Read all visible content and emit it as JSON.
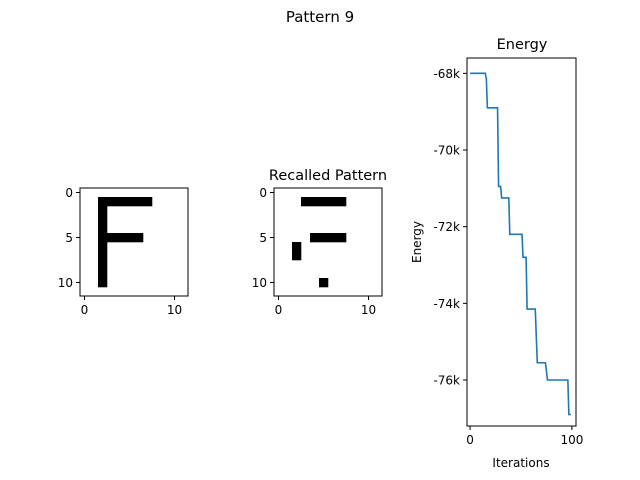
{
  "figure_title": "Pattern 9",
  "chart_data": [
    {
      "type": "heatmap",
      "title": "",
      "grid_size": [
        12,
        12
      ],
      "xlim": [
        -0.5,
        11.5
      ],
      "ylim": [
        11.5,
        -0.5
      ],
      "x_ticks": [
        "0",
        "10"
      ],
      "y_ticks": [
        "0",
        "5",
        "10"
      ],
      "colormap": "binary",
      "black_cells": [
        [
          1,
          2
        ],
        [
          1,
          3
        ],
        [
          1,
          4
        ],
        [
          1,
          5
        ],
        [
          1,
          6
        ],
        [
          1,
          7
        ],
        [
          2,
          2
        ],
        [
          3,
          2
        ],
        [
          4,
          2
        ],
        [
          5,
          2
        ],
        [
          5,
          3
        ],
        [
          5,
          4
        ],
        [
          5,
          5
        ],
        [
          5,
          6
        ],
        [
          6,
          2
        ],
        [
          7,
          2
        ],
        [
          8,
          2
        ],
        [
          9,
          2
        ],
        [
          10,
          2
        ]
      ]
    },
    {
      "type": "heatmap",
      "title": "Recalled Pattern",
      "grid_size": [
        12,
        12
      ],
      "xlim": [
        -0.5,
        11.5
      ],
      "ylim": [
        11.5,
        -0.5
      ],
      "x_ticks": [
        "0",
        "10"
      ],
      "y_ticks": [
        "0",
        "5",
        "10"
      ],
      "colormap": "binary",
      "black_cells": [
        [
          1,
          3
        ],
        [
          1,
          4
        ],
        [
          1,
          5
        ],
        [
          1,
          6
        ],
        [
          1,
          7
        ],
        [
          5,
          4
        ],
        [
          5,
          5
        ],
        [
          5,
          6
        ],
        [
          5,
          7
        ],
        [
          6,
          2
        ],
        [
          7,
          2
        ],
        [
          10,
          5
        ]
      ]
    },
    {
      "type": "line",
      "title": "Energy",
      "xlabel": "Iterations",
      "ylabel": "Energy",
      "xlim": [
        -3,
        104
      ],
      "ylim": [
        -77.2,
        -67.6
      ],
      "x_ticks": [
        0,
        100
      ],
      "x_tick_labels": [
        "0",
        "100"
      ],
      "y_ticks": [
        -68,
        -70,
        -72,
        -74,
        -76
      ],
      "y_tick_labels": [
        "-68k",
        "-70k",
        "-72k",
        "-74k",
        "-76k"
      ],
      "color": "#1f77b4",
      "x": [
        0,
        15,
        16,
        17,
        27,
        28,
        30,
        31,
        33,
        38,
        39,
        48,
        49,
        50,
        51,
        52,
        55,
        56,
        63,
        64,
        66,
        73,
        74,
        76,
        95,
        96,
        97,
        99
      ],
      "y": [
        -68.0,
        -68.0,
        -68.15,
        -68.9,
        -68.9,
        -70.95,
        -70.95,
        -71.25,
        -71.25,
        -71.25,
        -72.2,
        -72.2,
        -72.2,
        -72.2,
        -72.2,
        -72.8,
        -72.8,
        -74.15,
        -74.15,
        -74.15,
        -75.55,
        -75.55,
        -75.55,
        -76.0,
        -76.0,
        -76.0,
        -76.9,
        -76.9
      ]
    }
  ]
}
